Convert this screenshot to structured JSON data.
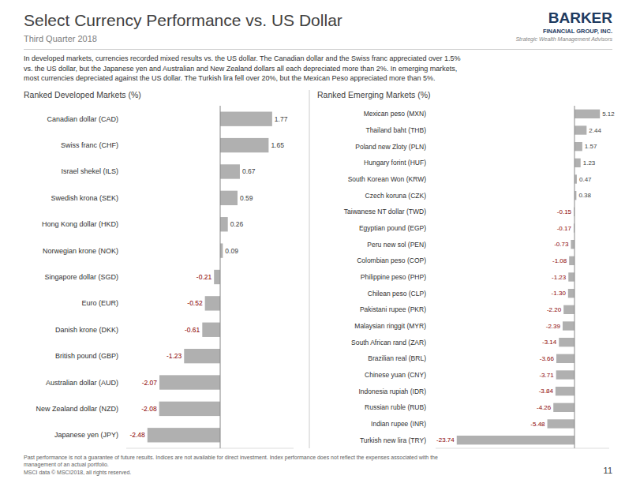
{
  "title": "Select Currency Performance vs. US Dollar",
  "subtitle": "Third Quarter 2018",
  "annotations": [
    "In developed markets, currencies recorded mixed results vs. the US dollar. The Canadian dollar and the Swiss franc appreciated over 1.5%\nvs. the US dollar, but the Japanese yen and Australian and New Zealand dollars all each depreciated more than 2%. In emerging markets,\nmost currencies depreciated against the US dollar. The Turkish lira fell over 20%, but the Mexican Peso appreciated more than 5%.",
    "Past performance is not a guarantee of future results. Indices are not available for direct investment. Index performance does not reflect the expenses associated with the\nmanagement of an actual portfolio.\nMSCI data © MSCI2018, all rights reserved.",
    "11",
    "BARKER",
    "FINANCIAL GROUP, INC.",
    "Strategic Wealth Management Advisors"
  ],
  "chart_data": [
    {
      "type": "bar",
      "orientation": "horizontal",
      "title": "Ranked Developed Markets (%)",
      "categories": [
        "Canadian dollar (CAD)",
        "Swiss franc (CHF)",
        "Israel shekel (ILS)",
        "Swedish krona (SEK)",
        "Hong Kong dollar (HKD)",
        "Norwegian krone (NOK)",
        "Singapore dollar (SGD)",
        "Euro (EUR)",
        "Danish krone (DKK)",
        "British pound (GBP)",
        "Australian dollar (AUD)",
        "New Zealand dollar (NZD)",
        "Japanese yen (JPY)"
      ],
      "values": [
        1.77,
        1.65,
        0.67,
        0.59,
        0.26,
        0.09,
        -0.21,
        -0.52,
        -0.61,
        -1.23,
        -2.07,
        -2.08,
        -2.48
      ],
      "color": "#b0b0b0",
      "xlim": [
        -3.2,
        2.5
      ],
      "data_labels": true,
      "tick_labels": "y",
      "grid": false
    },
    {
      "type": "bar",
      "orientation": "horizontal",
      "title": "Ranked Emerging Markets (%)",
      "categories": [
        "Mexican peso (MXN)",
        "Thailand baht (THB)",
        "Poland new Zloty (PLN)",
        "Hungary forint (HUF)",
        "South Korean Won (KRW)",
        "Czech koruna (CZK)",
        "Taiwanese NT dollar (TWD)",
        "Egyptian pound (EGP)",
        "Peru new sol (PEN)",
        "Colombian peso (COP)",
        "Philippine peso (PHP)",
        "Chilean peso (CLP)",
        "Pakistani rupee (PKR)",
        "Malaysian ringgit (MYR)",
        "South African rand (ZAR)",
        "Brazilian real (BRL)",
        "Chinese yuan (CNY)",
        "Indonesia rupiah (IDR)",
        "Russian ruble (RUB)",
        "Indian rupee (INR)",
        "Turkish new lira (TRY)"
      ],
      "values": [
        5.12,
        2.44,
        1.57,
        1.23,
        0.47,
        0.38,
        -0.15,
        -0.17,
        -0.73,
        -1.08,
        -1.23,
        -1.3,
        -2.2,
        -2.39,
        -3.14,
        -3.66,
        -3.71,
        -3.84,
        -4.26,
        -5.48,
        -23.74
      ],
      "value_labels": [
        "5.12",
        "2.44",
        "1.57",
        "1.23",
        "0.47",
        "0.38",
        "-0.15",
        "-0.17",
        "-0.73",
        "-1.08",
        "-1.23",
        "-1.30",
        "-2.20",
        "-2.39",
        "-3.14",
        "-3.66",
        "-3.71",
        "-3.84",
        "-4.26",
        "-5.48",
        "-23.74"
      ],
      "color": "#b0b0b0",
      "xlim": [
        -28,
        7
      ],
      "data_labels": true,
      "tick_labels": "y",
      "grid": false
    }
  ]
}
